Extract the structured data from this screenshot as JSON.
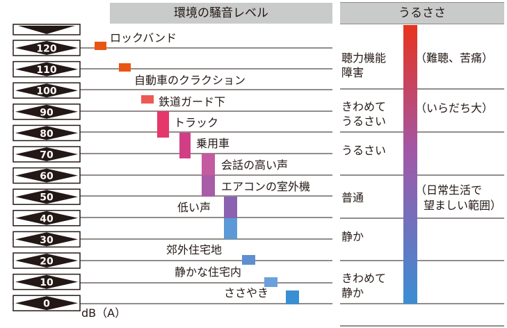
{
  "left_header": "環境の騒音レベル",
  "right_header": "うるささ",
  "unit": "dB（A）",
  "levels": [
    "120",
    "110",
    "100",
    "90",
    "80",
    "70",
    "60",
    "50",
    "40",
    "30",
    "20",
    "10",
    "0"
  ],
  "sources": [
    {
      "label": "ロックバンド",
      "color": "#e95513"
    },
    {
      "label": "自動車のクラクション",
      "color": "#e95513"
    },
    {
      "label": "鉄道ガード下",
      "color": "#ec5a55"
    },
    {
      "label": "トラック",
      "color": "#e4386a"
    },
    {
      "label": "乗用車",
      "color": "#d23e86"
    },
    {
      "label": "会話の高い声",
      "color": "#c45a9f"
    },
    {
      "label": "エアコンの室外機",
      "color": "#a85ba6"
    },
    {
      "label": "低い声",
      "color": "#8a62b1"
    },
    {
      "label": "郊外住宅地",
      "color": "#5f8fd0"
    },
    {
      "label": "静かな住宅内",
      "color": "#6aa1dc"
    },
    {
      "label": "ささやき",
      "color": "#3a8fd3"
    }
  ],
  "annoyance": [
    {
      "l1": "聴力機能",
      "l2": "障害",
      "note1": "（難聴、苦痛）",
      "note2": ""
    },
    {
      "l1": "きわめて",
      "l2": "うるさい",
      "note1": "（いらだち大）",
      "note2": ""
    },
    {
      "l1": "うるさい",
      "l2": "",
      "note1": "",
      "note2": ""
    },
    {
      "l1": "普通",
      "l2": "",
      "note1": "（日常生活で",
      "note2": "望ましい範囲）"
    },
    {
      "l1": "静か",
      "l2": "",
      "note1": "",
      "note2": ""
    },
    {
      "l1": "きわめて",
      "l2": "静か",
      "note1": "",
      "note2": ""
    }
  ],
  "colors": {
    "header_bg": "#c9caca",
    "lines": "#231815",
    "gradient_top": "#e8331e",
    "gradient_mid": "#a257a6",
    "gradient_bottom": "#3b8dd4"
  }
}
